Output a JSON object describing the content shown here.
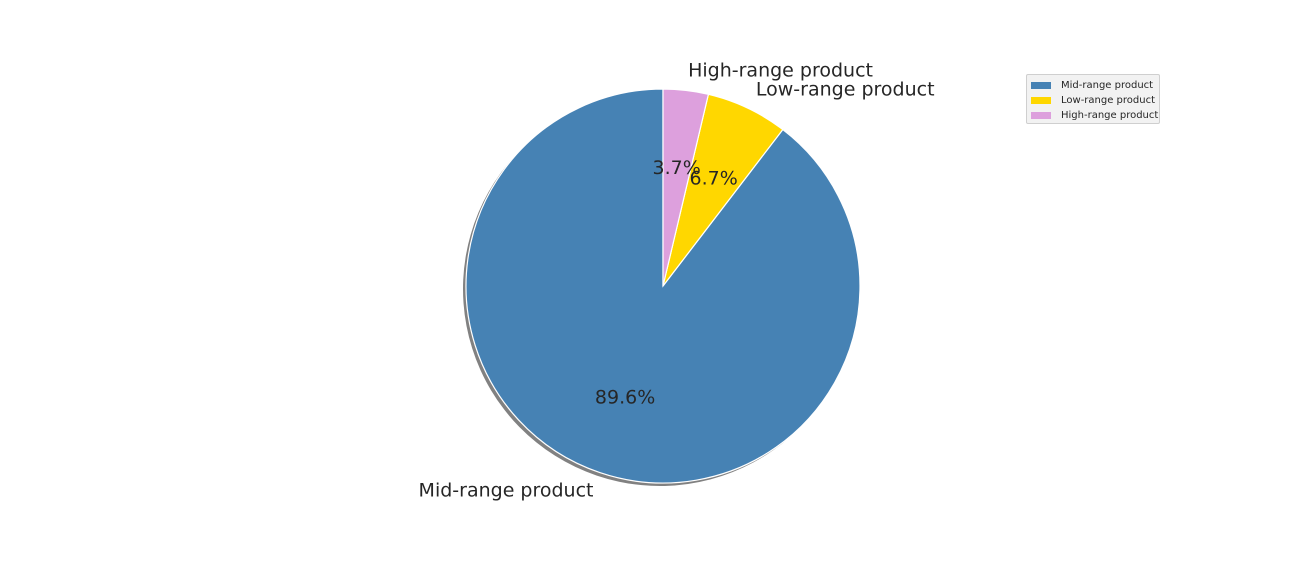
{
  "chart_data": {
    "type": "pie",
    "title": "",
    "start_angle_deg": 90,
    "direction": "counterclockwise",
    "shadow": true,
    "legend_position": "top-right",
    "slices": [
      {
        "label": "Mid-range product",
        "value": 89.6,
        "pct_label": "89.6%",
        "color": "#4682b4"
      },
      {
        "label": "Low-range product",
        "value": 6.7,
        "pct_label": "6.7%",
        "color": "#ffd700"
      },
      {
        "label": "High-range product",
        "value": 3.7,
        "pct_label": "3.7%",
        "color": "#dda0dd"
      }
    ]
  }
}
